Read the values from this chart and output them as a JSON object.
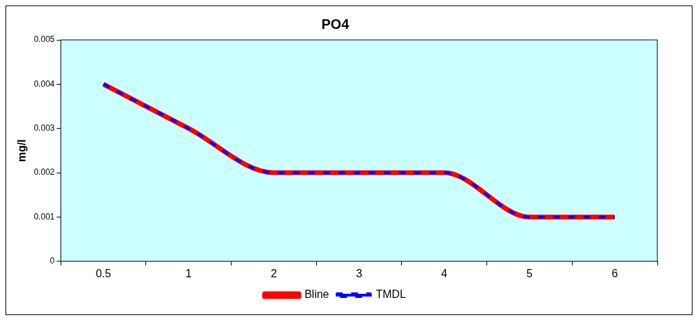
{
  "chart_data": {
    "type": "line",
    "title": "PO4",
    "ylabel": "mg/l",
    "categories": [
      "0.5",
      "1",
      "2",
      "3",
      "4",
      "5",
      "6"
    ],
    "series": [
      {
        "name": "Bline",
        "color": "#ff0000",
        "line_style": "solid",
        "values": [
          0.004,
          0.003,
          0.002,
          0.002,
          0.002,
          0.001,
          0.001
        ]
      },
      {
        "name": "TMDL",
        "color": "#0000ff",
        "line_style": "dashed",
        "values": [
          0.004,
          0.003,
          0.002,
          0.002,
          0.002,
          0.001,
          0.001
        ]
      }
    ],
    "ylim": [
      0,
      0.005
    ],
    "yticks": [
      0,
      0.001,
      0.002,
      0.003,
      0.004,
      0.005
    ],
    "grid": false,
    "legend": "bottom",
    "marker": "none"
  }
}
